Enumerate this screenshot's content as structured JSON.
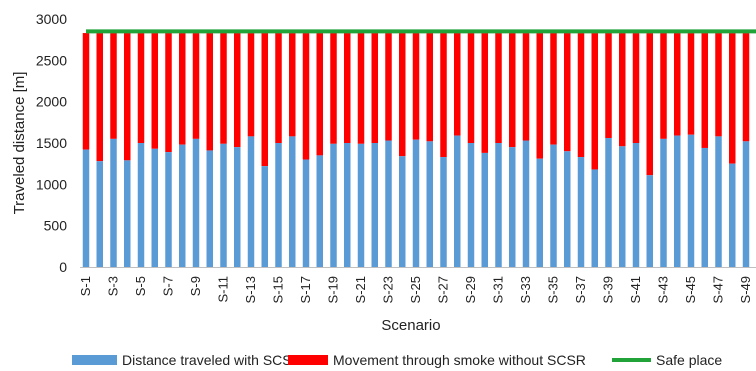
{
  "chart_data": {
    "type": "bar",
    "stacked": true,
    "xlabel": "Scenario",
    "ylabel": "Traveled distance [m]",
    "ylim": [
      0,
      3000
    ],
    "yticks": [
      0,
      500,
      1000,
      1500,
      2000,
      2500,
      3000
    ],
    "grid": false,
    "legend_position": "bottom",
    "categories": [
      "S-1",
      "S-2",
      "S-3",
      "S-4",
      "S-5",
      "S-6",
      "S-7",
      "S-8",
      "S-9",
      "S-10",
      "S-11",
      "S-12",
      "S-13",
      "S-14",
      "S-15",
      "S-16",
      "S-17",
      "S-18",
      "S-19",
      "S-20",
      "S-21",
      "S-22",
      "S-23",
      "S-24",
      "S-25",
      "S-26",
      "S-27",
      "S-28",
      "S-29",
      "S-30",
      "S-31",
      "S-32",
      "S-33",
      "S-34",
      "S-35",
      "S-36",
      "S-37",
      "S-38",
      "S-39",
      "S-40",
      "S-41",
      "S-42",
      "S-43",
      "S-44",
      "S-45",
      "S-46",
      "S-47",
      "S-48",
      "S-49",
      "S-50"
    ],
    "x_tick_labels": [
      "S-1",
      "S-3",
      "S-5",
      "S-7",
      "S-9",
      "S-11",
      "S-13",
      "S-15",
      "S-17",
      "S-19",
      "S-21",
      "S-23",
      "S-25",
      "S-27",
      "S-29",
      "S-31",
      "S-33",
      "S-35",
      "S-37",
      "S-39",
      "S-41",
      "S-43",
      "S-45",
      "S-47",
      "S-49"
    ],
    "series": [
      {
        "name": "Distance traveled with SCSR",
        "color": "#5b9bd5",
        "values": [
          1420,
          1280,
          1550,
          1290,
          1500,
          1430,
          1390,
          1480,
          1550,
          1410,
          1490,
          1450,
          1580,
          1220,
          1500,
          1580,
          1300,
          1350,
          1490,
          1500,
          1490,
          1500,
          1530,
          1340,
          1540,
          1520,
          1330,
          1590,
          1500,
          1380,
          1500,
          1450,
          1530,
          1310,
          1480,
          1400,
          1330,
          1180,
          1560,
          1460,
          1500,
          1110,
          1550,
          1590,
          1600,
          1440,
          1580,
          1250,
          1520,
          1530
        ]
      },
      {
        "name": "Movement through smoke without SCSR",
        "color": "#ff0000",
        "total": 2830
      },
      {
        "name": "Safe place",
        "type": "line",
        "color": "#22a33a",
        "value": 2850
      }
    ]
  }
}
